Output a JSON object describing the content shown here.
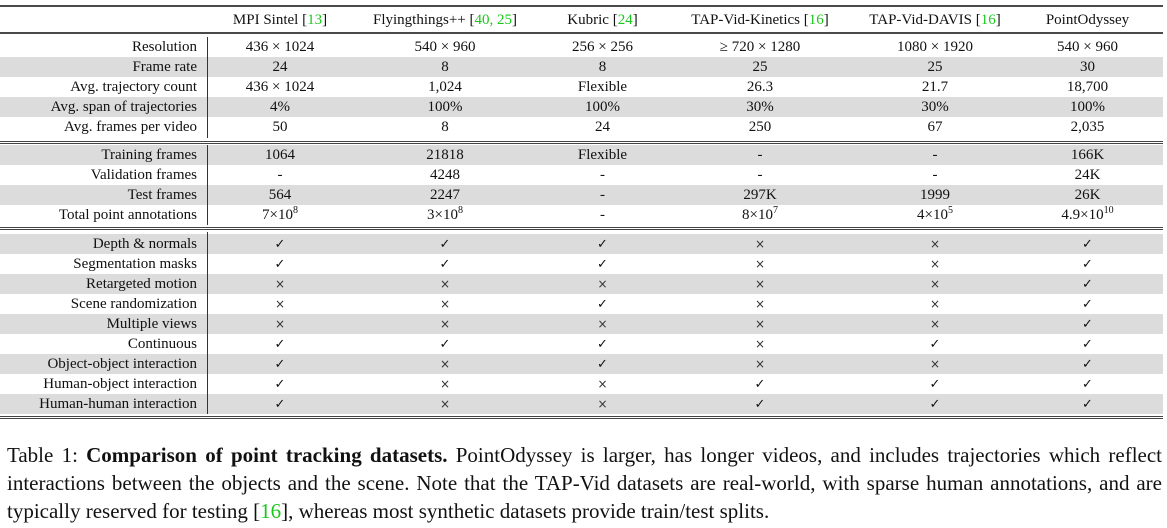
{
  "table": {
    "header": {
      "columns": [
        {
          "name": "MPI Sintel",
          "refs": "13"
        },
        {
          "name": "Flyingthings++",
          "refs": "40, 25"
        },
        {
          "name": "Kubric",
          "refs": "24"
        },
        {
          "name": "TAP-Vid-Kinetics",
          "refs": "16"
        },
        {
          "name": "TAP-Vid-DAVIS",
          "refs": "16"
        },
        {
          "name": "PointOdyssey",
          "refs": ""
        }
      ]
    },
    "section1": [
      {
        "label": "Resolution",
        "values": [
          "436 × 1024",
          "540 × 960",
          "256 × 256",
          "≥ 720 × 1280",
          "1080 × 1920",
          "540 × 960"
        ]
      },
      {
        "label": "Frame rate",
        "values": [
          "24",
          "8",
          "8",
          "25",
          "25",
          "30"
        ]
      },
      {
        "label": "Avg. trajectory count",
        "values": [
          "436 × 1024",
          "1,024",
          "Flexible",
          "26.3",
          "21.7",
          "18,700"
        ]
      },
      {
        "label": "Avg. span of trajectories",
        "values": [
          "4%",
          "100%",
          "100%",
          "30%",
          "30%",
          "100%"
        ]
      },
      {
        "label": "Avg. frames per video",
        "values": [
          "50",
          "8",
          "24",
          "250",
          "67",
          "2,035"
        ]
      }
    ],
    "section2": [
      {
        "label": "Training frames",
        "values": [
          "1064",
          "21818",
          "Flexible",
          "-",
          "-",
          "166K"
        ]
      },
      {
        "label": "Validation frames",
        "values": [
          "-",
          "4248",
          "-",
          "-",
          "-",
          "24K"
        ]
      },
      {
        "label": "Test frames",
        "values": [
          "564",
          "2247",
          "-",
          "297K",
          "1999",
          "26K"
        ]
      },
      {
        "label": "Total point annotations",
        "values": [
          {
            "base": "7×10",
            "exp": "8"
          },
          {
            "base": "3×10",
            "exp": "8"
          },
          {
            "base": "-",
            "exp": ""
          },
          {
            "base": "8×10",
            "exp": "7"
          },
          {
            "base": "4×10",
            "exp": "5"
          },
          {
            "base": "4.9×10",
            "exp": "10"
          }
        ]
      }
    ],
    "section3": [
      {
        "label": "Depth & normals",
        "values": [
          "✓",
          "✓",
          "✓",
          "×",
          "×",
          "✓"
        ]
      },
      {
        "label": "Segmentation masks",
        "values": [
          "✓",
          "✓",
          "✓",
          "×",
          "×",
          "✓"
        ]
      },
      {
        "label": "Retargeted motion",
        "values": [
          "×",
          "×",
          "×",
          "×",
          "×",
          "✓"
        ]
      },
      {
        "label": "Scene randomization",
        "values": [
          "×",
          "×",
          "✓",
          "×",
          "×",
          "✓"
        ]
      },
      {
        "label": "Multiple views",
        "values": [
          "×",
          "×",
          "×",
          "×",
          "×",
          "✓"
        ]
      },
      {
        "label": "Continuous",
        "values": [
          "✓",
          "✓",
          "✓",
          "×",
          "✓",
          "✓"
        ]
      },
      {
        "label": "Object-object interaction",
        "values": [
          "✓",
          "×",
          "✓",
          "×",
          "×",
          "✓"
        ]
      },
      {
        "label": "Human-object interaction",
        "values": [
          "✓",
          "×",
          "×",
          "✓",
          "✓",
          "✓"
        ]
      },
      {
        "label": "Human-human interaction",
        "values": [
          "✓",
          "×",
          "×",
          "✓",
          "✓",
          "✓"
        ]
      }
    ]
  },
  "caption": {
    "prefix": "Table 1: ",
    "bold": "Comparison of point tracking datasets.",
    "text_before_ref": " PointOdyssey is larger, has longer videos, and includes trajectories which reflect interactions between the objects and the scene.  Note that the TAP-Vid datasets are real-world, with sparse human annotations, and are typically reserved for testing [",
    "ref": "16",
    "text_after_ref": "], whereas most synthetic datasets provide train/test splits."
  },
  "colors": {
    "band": "#dcdcdc",
    "ref": "#19c819",
    "rule": "#4a4a4a"
  }
}
